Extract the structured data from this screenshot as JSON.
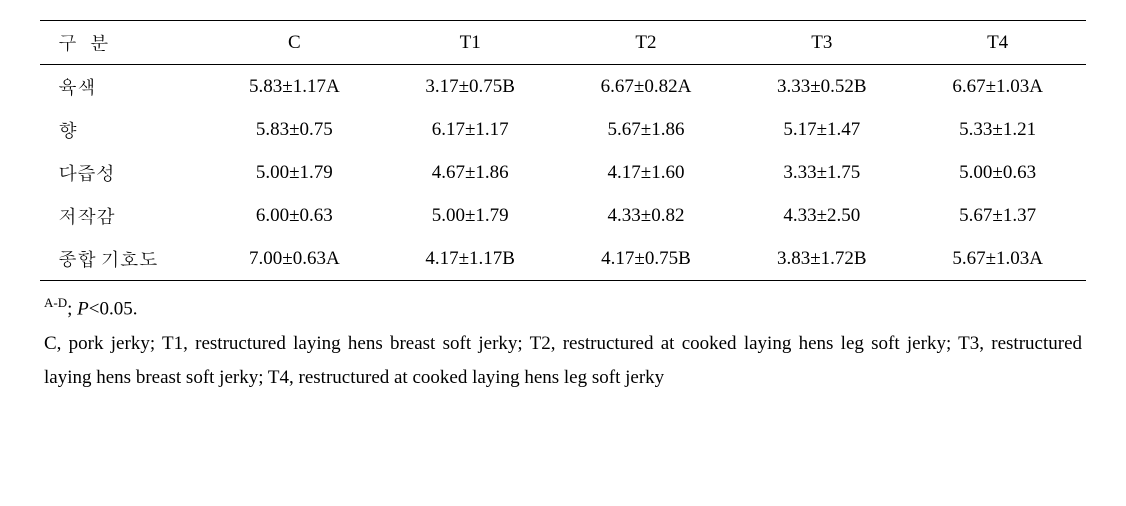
{
  "table": {
    "headers": [
      "구  분",
      "C",
      "T1",
      "T2",
      "T3",
      "T4"
    ],
    "rows": [
      {
        "label": "육색",
        "values": [
          "5.83±1.17A",
          "3.17±0.75B",
          "6.67±0.82A",
          "3.33±0.52B",
          "6.67±1.03A"
        ]
      },
      {
        "label": "향",
        "values": [
          "5.83±0.75",
          "6.17±1.17",
          "5.67±1.86",
          "5.17±1.47",
          "5.33±1.21"
        ]
      },
      {
        "label": "다즙성",
        "values": [
          "5.00±1.79",
          "4.67±1.86",
          "4.17±1.60",
          "3.33±1.75",
          "5.00±0.63"
        ]
      },
      {
        "label": "저작감",
        "values": [
          "6.00±0.63",
          "5.00±1.79",
          "4.33±0.82",
          "4.33±2.50",
          "5.67±1.37"
        ]
      },
      {
        "label": "종합 기호도",
        "values": [
          "7.00±0.63A",
          "4.17±1.17B",
          "4.17±0.75B",
          "3.83±1.72B",
          "5.67±1.03A"
        ]
      }
    ]
  },
  "footnote": {
    "sup_label": "A-D",
    "sig_prefix": "; ",
    "sig_letter": "P",
    "sig_rest": "<0.05.",
    "desc": "C, pork jerky; T1, restructured laying hens breast soft jerky; T2, restructured at cooked laying hens leg soft jerky; T3, restructured laying hens breast soft jerky; T4, restructured at cooked laying hens leg soft jerky"
  }
}
